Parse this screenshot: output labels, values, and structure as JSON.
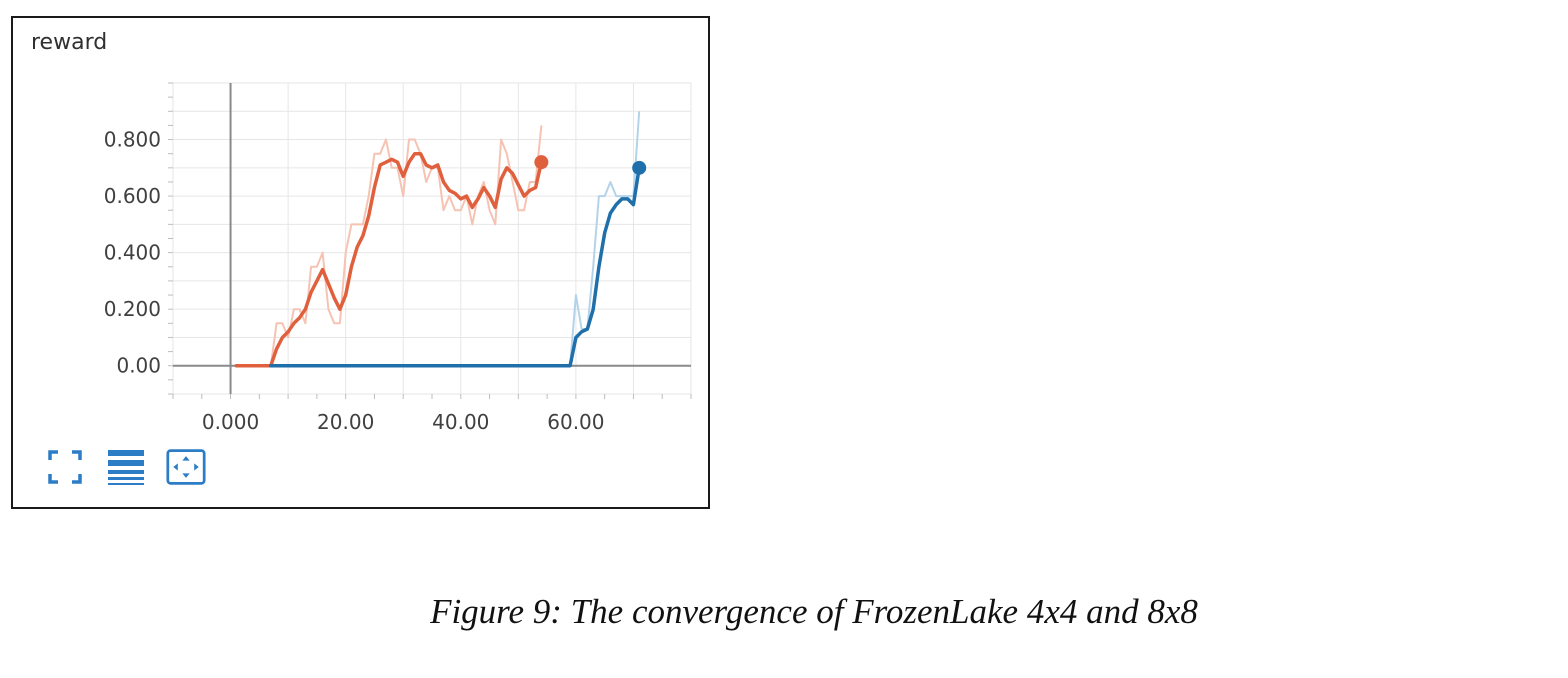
{
  "panel": {
    "title": "reward"
  },
  "toolbar": {
    "items": [
      {
        "icon": "expand-icon"
      },
      {
        "icon": "list-icon"
      },
      {
        "icon": "fit-domain-icon"
      }
    ],
    "accent": "#1f78c8"
  },
  "caption": "Figure 9: The convergence of FrozenLake 4x4 and 8x8",
  "chart_data": {
    "type": "line",
    "title": "reward",
    "xlabel": "",
    "ylabel": "",
    "xlim": [
      -10,
      80
    ],
    "ylim": [
      -0.1,
      1.0
    ],
    "x_ticks": [
      0,
      20,
      40,
      60
    ],
    "x_tick_labels": [
      "0.000",
      "20.00",
      "40.00",
      "60.00"
    ],
    "y_ticks": [
      0,
      0.2,
      0.4,
      0.6,
      0.8
    ],
    "y_tick_labels": [
      "0.00",
      "0.200",
      "0.400",
      "0.600",
      "0.800"
    ],
    "grid": true,
    "series": [
      {
        "color": "#e0603d",
        "raw_color": "#f6c3b3",
        "smoothed": [
          [
            1,
            0
          ],
          [
            3,
            0
          ],
          [
            5,
            0
          ],
          [
            7,
            0
          ],
          [
            8,
            0.06
          ],
          [
            9,
            0.1
          ],
          [
            10,
            0.12
          ],
          [
            11,
            0.15
          ],
          [
            12,
            0.17
          ],
          [
            13,
            0.2
          ],
          [
            14,
            0.26
          ],
          [
            15,
            0.3
          ],
          [
            16,
            0.34
          ],
          [
            17,
            0.29
          ],
          [
            18,
            0.24
          ],
          [
            19,
            0.2
          ],
          [
            20,
            0.25
          ],
          [
            21,
            0.35
          ],
          [
            22,
            0.42
          ],
          [
            23,
            0.46
          ],
          [
            24,
            0.53
          ],
          [
            25,
            0.63
          ],
          [
            26,
            0.71
          ],
          [
            27,
            0.72
          ],
          [
            28,
            0.73
          ],
          [
            29,
            0.72
          ],
          [
            30,
            0.67
          ],
          [
            31,
            0.72
          ],
          [
            32,
            0.75
          ],
          [
            33,
            0.75
          ],
          [
            34,
            0.71
          ],
          [
            35,
            0.7
          ],
          [
            36,
            0.71
          ],
          [
            37,
            0.65
          ],
          [
            38,
            0.62
          ],
          [
            39,
            0.61
          ],
          [
            40,
            0.59
          ],
          [
            41,
            0.6
          ],
          [
            42,
            0.56
          ],
          [
            43,
            0.59
          ],
          [
            44,
            0.63
          ],
          [
            45,
            0.6
          ],
          [
            46,
            0.56
          ],
          [
            47,
            0.66
          ],
          [
            48,
            0.7
          ],
          [
            49,
            0.68
          ],
          [
            50,
            0.64
          ],
          [
            51,
            0.6
          ],
          [
            52,
            0.62
          ],
          [
            53,
            0.63
          ],
          [
            54,
            0.72
          ]
        ],
        "raw": [
          [
            1,
            0
          ],
          [
            3,
            0
          ],
          [
            5,
            0
          ],
          [
            7,
            0
          ],
          [
            8,
            0.15
          ],
          [
            9,
            0.15
          ],
          [
            10,
            0.1
          ],
          [
            11,
            0.2
          ],
          [
            12,
            0.2
          ],
          [
            13,
            0.15
          ],
          [
            14,
            0.35
          ],
          [
            15,
            0.35
          ],
          [
            16,
            0.4
          ],
          [
            17,
            0.2
          ],
          [
            18,
            0.15
          ],
          [
            19,
            0.15
          ],
          [
            20,
            0.4
          ],
          [
            21,
            0.5
          ],
          [
            22,
            0.5
          ],
          [
            23,
            0.5
          ],
          [
            24,
            0.6
          ],
          [
            25,
            0.75
          ],
          [
            26,
            0.75
          ],
          [
            27,
            0.8
          ],
          [
            28,
            0.7
          ],
          [
            29,
            0.7
          ],
          [
            30,
            0.6
          ],
          [
            31,
            0.8
          ],
          [
            32,
            0.8
          ],
          [
            33,
            0.75
          ],
          [
            34,
            0.65
          ],
          [
            35,
            0.7
          ],
          [
            36,
            0.7
          ],
          [
            37,
            0.55
          ],
          [
            38,
            0.6
          ],
          [
            39,
            0.55
          ],
          [
            40,
            0.55
          ],
          [
            41,
            0.6
          ],
          [
            42,
            0.5
          ],
          [
            43,
            0.6
          ],
          [
            44,
            0.65
          ],
          [
            45,
            0.55
          ],
          [
            46,
            0.5
          ],
          [
            47,
            0.8
          ],
          [
            48,
            0.75
          ],
          [
            49,
            0.65
          ],
          [
            50,
            0.55
          ],
          [
            51,
            0.55
          ],
          [
            52,
            0.65
          ],
          [
            53,
            0.65
          ],
          [
            54,
            0.85
          ]
        ]
      },
      {
        "color": "#1f6fab",
        "raw_color": "#b3d3ea",
        "smoothed": [
          [
            7,
            0
          ],
          [
            20,
            0
          ],
          [
            40,
            0
          ],
          [
            59,
            0
          ],
          [
            60,
            0.1
          ],
          [
            61,
            0.12
          ],
          [
            62,
            0.13
          ],
          [
            63,
            0.2
          ],
          [
            64,
            0.35
          ],
          [
            65,
            0.47
          ],
          [
            66,
            0.54
          ],
          [
            67,
            0.57
          ],
          [
            68,
            0.59
          ],
          [
            69,
            0.59
          ],
          [
            70,
            0.57
          ],
          [
            71,
            0.7
          ]
        ],
        "raw": [
          [
            7,
            0
          ],
          [
            20,
            0
          ],
          [
            40,
            0
          ],
          [
            59,
            0
          ],
          [
            60,
            0.25
          ],
          [
            61,
            0.13
          ],
          [
            62,
            0.13
          ],
          [
            63,
            0.35
          ],
          [
            64,
            0.6
          ],
          [
            65,
            0.6
          ],
          [
            66,
            0.65
          ],
          [
            67,
            0.6
          ],
          [
            68,
            0.6
          ],
          [
            69,
            0.6
          ],
          [
            70,
            0.6
          ],
          [
            71,
            0.9
          ]
        ]
      }
    ]
  }
}
